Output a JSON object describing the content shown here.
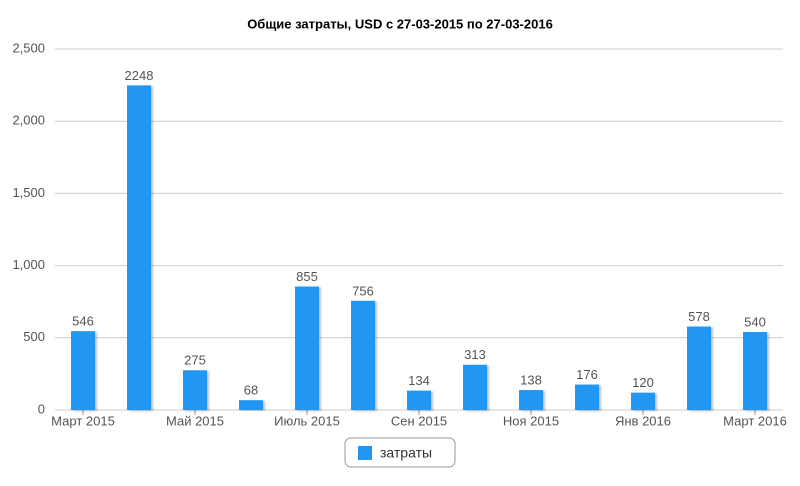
{
  "chart_data": {
    "type": "bar",
    "title": "Общие затраты, USD с 27-03-2015 по 27-03-2016",
    "categories": [
      "Март 2015",
      null,
      "Май 2015",
      null,
      "Июль 2015",
      null,
      "Сен 2015",
      null,
      "Ноя 2015",
      null,
      "Янв 2016",
      null,
      "Март 2016"
    ],
    "series": [
      {
        "name": "затраты",
        "color": "#2196f3",
        "values": [
          546,
          2248,
          275,
          68,
          855,
          756,
          134,
          313,
          138,
          176,
          120,
          578,
          540
        ]
      }
    ],
    "ylim": [
      0,
      2500
    ],
    "yticks": [
      0,
      500,
      {
        "value": 1000,
        "label": "1,000"
      },
      {
        "value": 1500,
        "label": "1,500"
      },
      {
        "value": 2000,
        "label": "2,000"
      },
      {
        "value": 2500,
        "label": "2,500"
      }
    ],
    "grid": true
  }
}
